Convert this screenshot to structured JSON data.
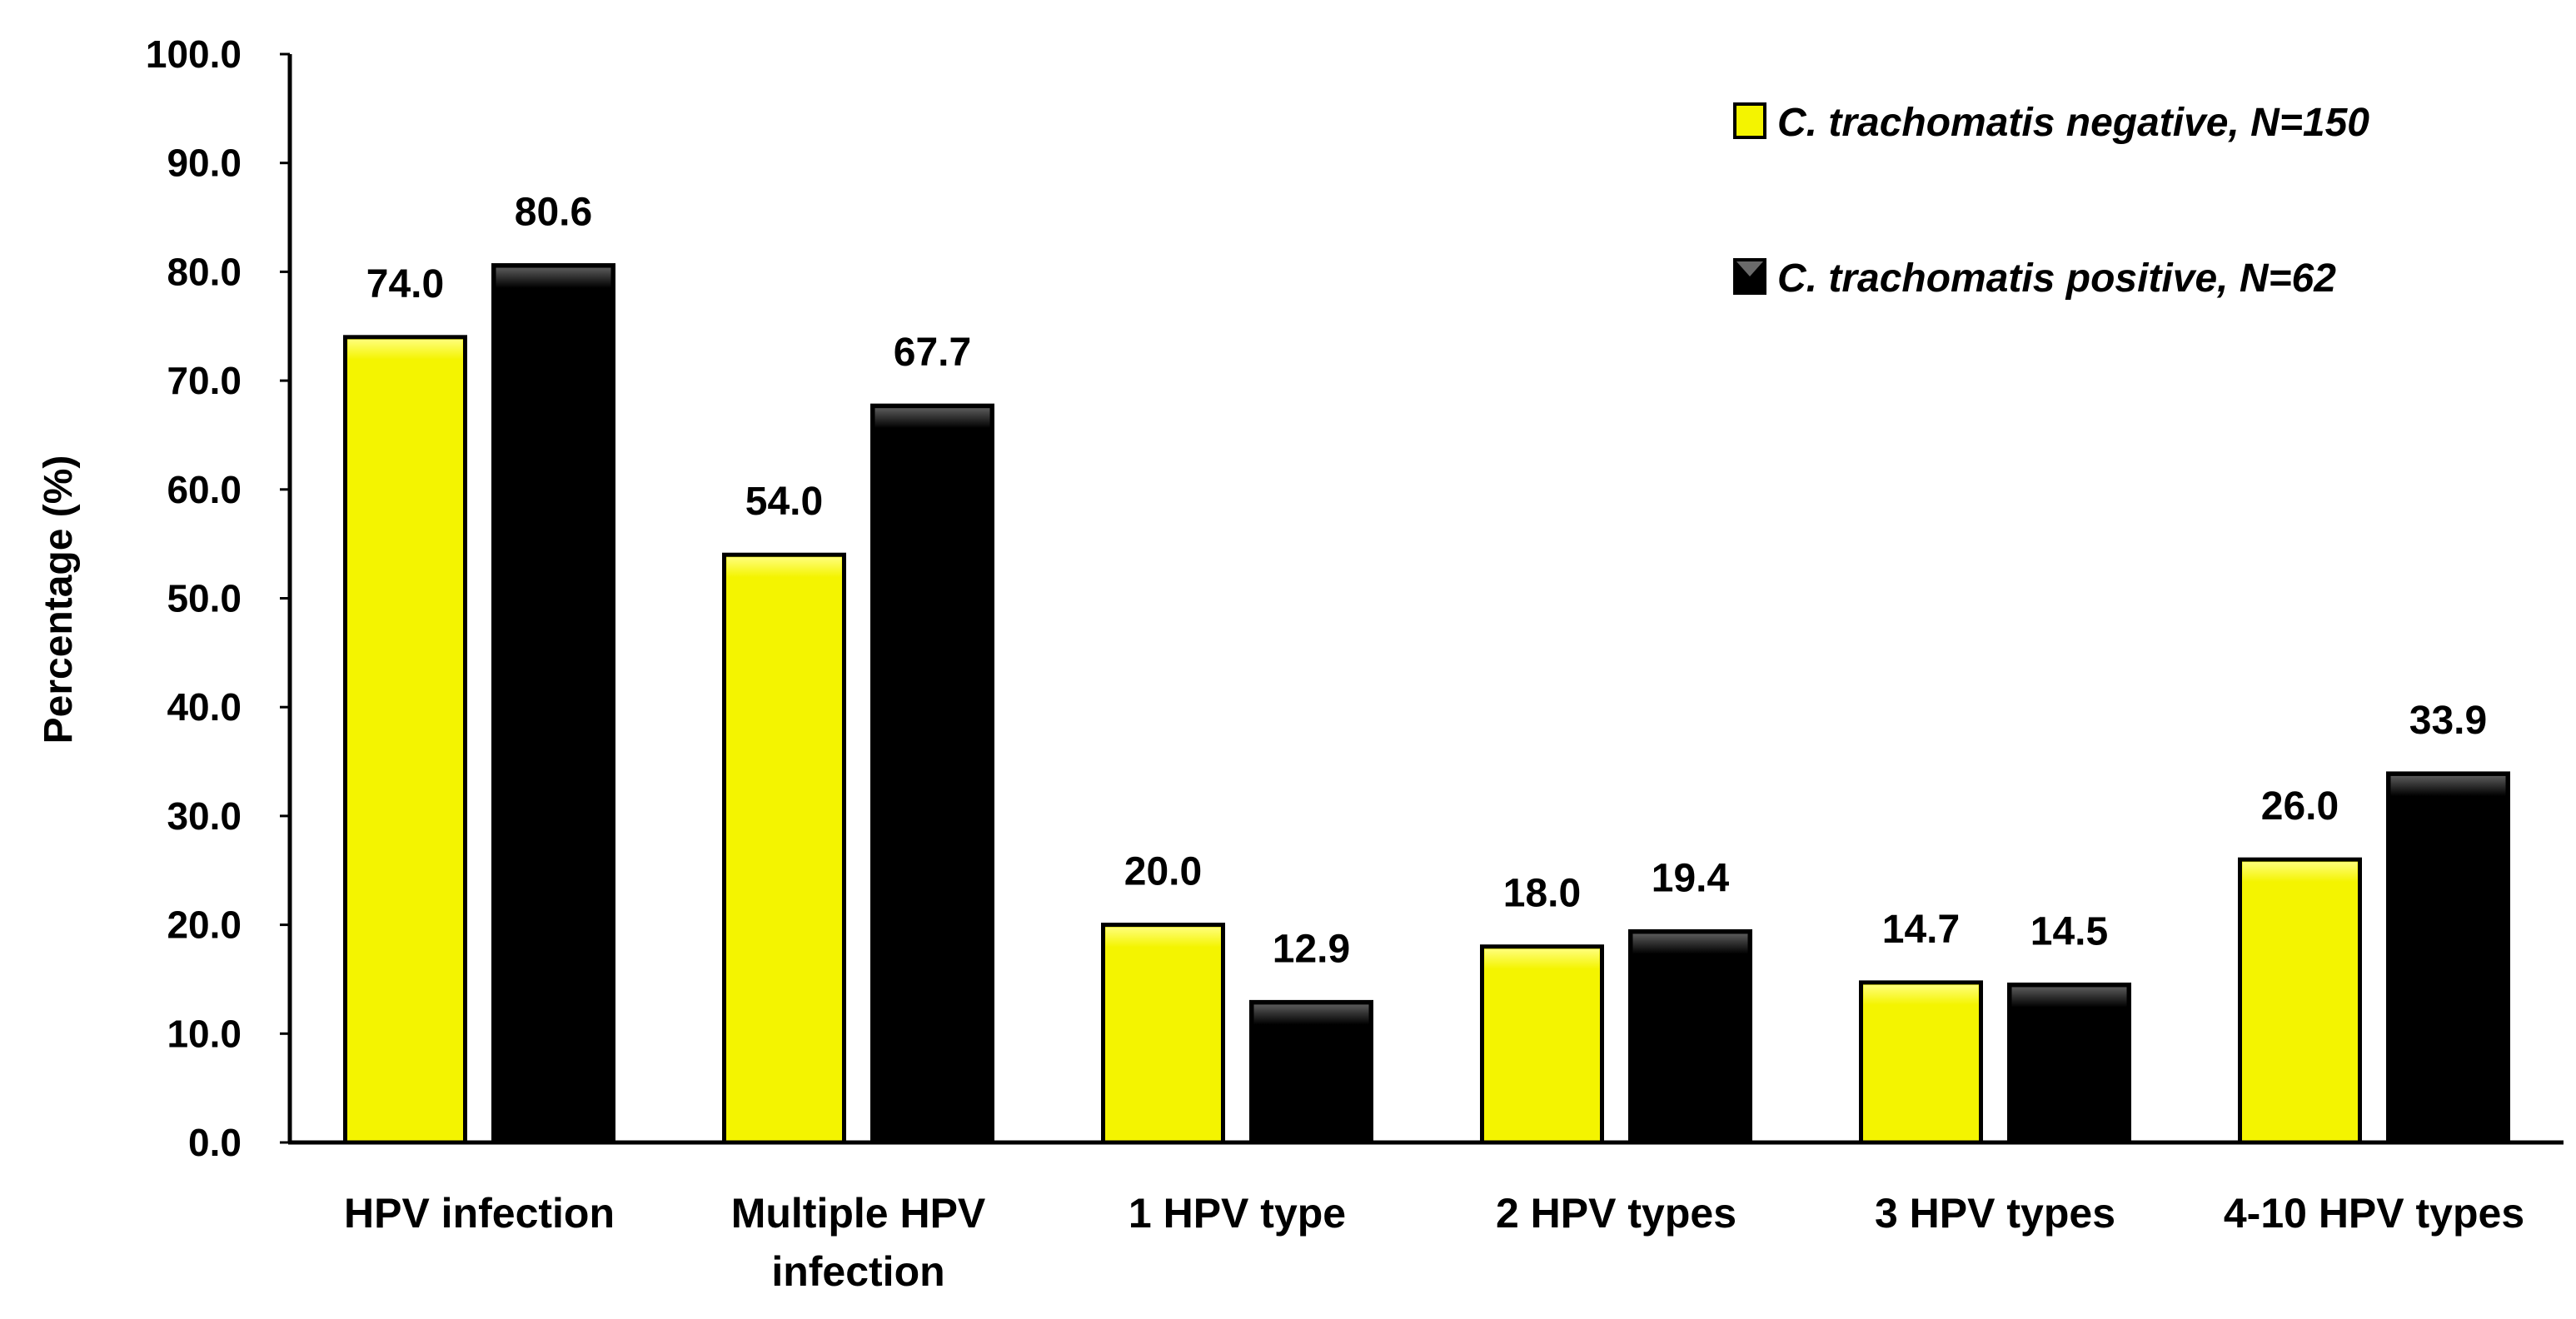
{
  "chart_data": {
    "type": "bar",
    "title": "",
    "xlabel": "",
    "ylabel": "Percentage (%)",
    "ylim": [
      0,
      100
    ],
    "yticks": [
      "0.0",
      "10.0",
      "20.0",
      "30.0",
      "40.0",
      "50.0",
      "60.0",
      "70.0",
      "80.0",
      "90.0",
      "100.0"
    ],
    "grid": false,
    "legend_position": "top-right",
    "categories": [
      [
        "HPV infection"
      ],
      [
        "Multiple HPV",
        "infection"
      ],
      [
        "1 HPV type"
      ],
      [
        "2 HPV types"
      ],
      [
        "3 HPV types"
      ],
      [
        "4-10 HPV types"
      ]
    ],
    "series": [
      {
        "name": "C. trachomatis negative, N=150",
        "color": "#f4f400",
        "values": [
          74.0,
          54.0,
          20.0,
          18.0,
          14.7,
          26.0
        ],
        "labels": [
          "74.0",
          "54.0",
          "20.0",
          "18.0",
          "14.7",
          "26.0"
        ]
      },
      {
        "name": "C. trachomatis positive, N=62",
        "color": "#000000",
        "values": [
          80.6,
          67.7,
          12.9,
          19.4,
          14.5,
          33.9
        ],
        "labels": [
          "80.6",
          "67.7",
          "12.9",
          "19.4",
          "14.5",
          "33.9"
        ]
      }
    ]
  }
}
